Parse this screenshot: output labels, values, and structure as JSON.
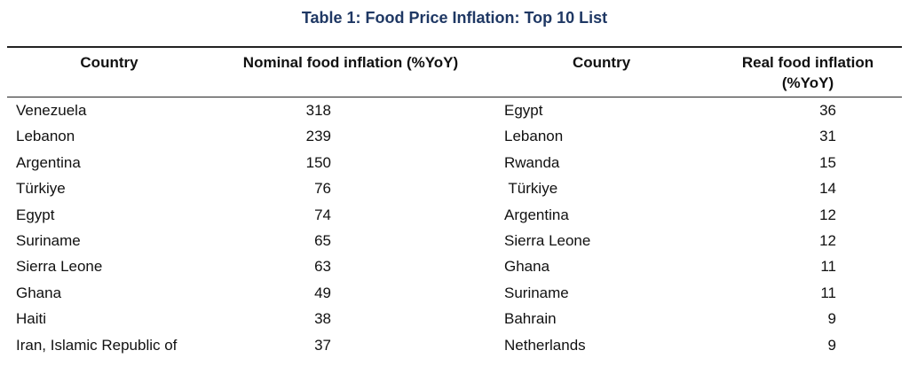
{
  "title": "Table 1: Food Price Inflation: Top 10 List",
  "headers": {
    "country_left": "Country",
    "nominal": "Nominal food inflation (%YoY)",
    "country_right": "Country",
    "real_line1": "Real food inflation",
    "real_line2": "(%YoY)"
  },
  "rows": [
    {
      "country_nominal": "Venezuela",
      "nominal": "318",
      "country_real": "Egypt",
      "real": "36"
    },
    {
      "country_nominal": "Lebanon",
      "nominal": "239",
      "country_real": "Lebanon",
      "real": "31"
    },
    {
      "country_nominal": "Argentina",
      "nominal": "150",
      "country_real": "Rwanda",
      "real": "15"
    },
    {
      "country_nominal": "Türkiye",
      "nominal": "76",
      "country_real": " Türkiye",
      "real": "14"
    },
    {
      "country_nominal": "Egypt",
      "nominal": "74",
      "country_real": "Argentina",
      "real": "12"
    },
    {
      "country_nominal": "Suriname",
      "nominal": "65",
      "country_real": "Sierra Leone",
      "real": "12"
    },
    {
      "country_nominal": "Sierra Leone",
      "nominal": "63",
      "country_real": "Ghana",
      "real": "11"
    },
    {
      "country_nominal": "Ghana",
      "nominal": "49",
      "country_real": "Suriname",
      "real": "11"
    },
    {
      "country_nominal": "Haiti",
      "nominal": "38",
      "country_real": "Bahrain",
      "real": "9"
    },
    {
      "country_nominal": "Iran, Islamic Republic of",
      "nominal": "37",
      "country_real": "Netherlands",
      "real": "9"
    }
  ],
  "colors": {
    "title": "#1f3864",
    "text": "#111111",
    "rule": "#222222"
  }
}
